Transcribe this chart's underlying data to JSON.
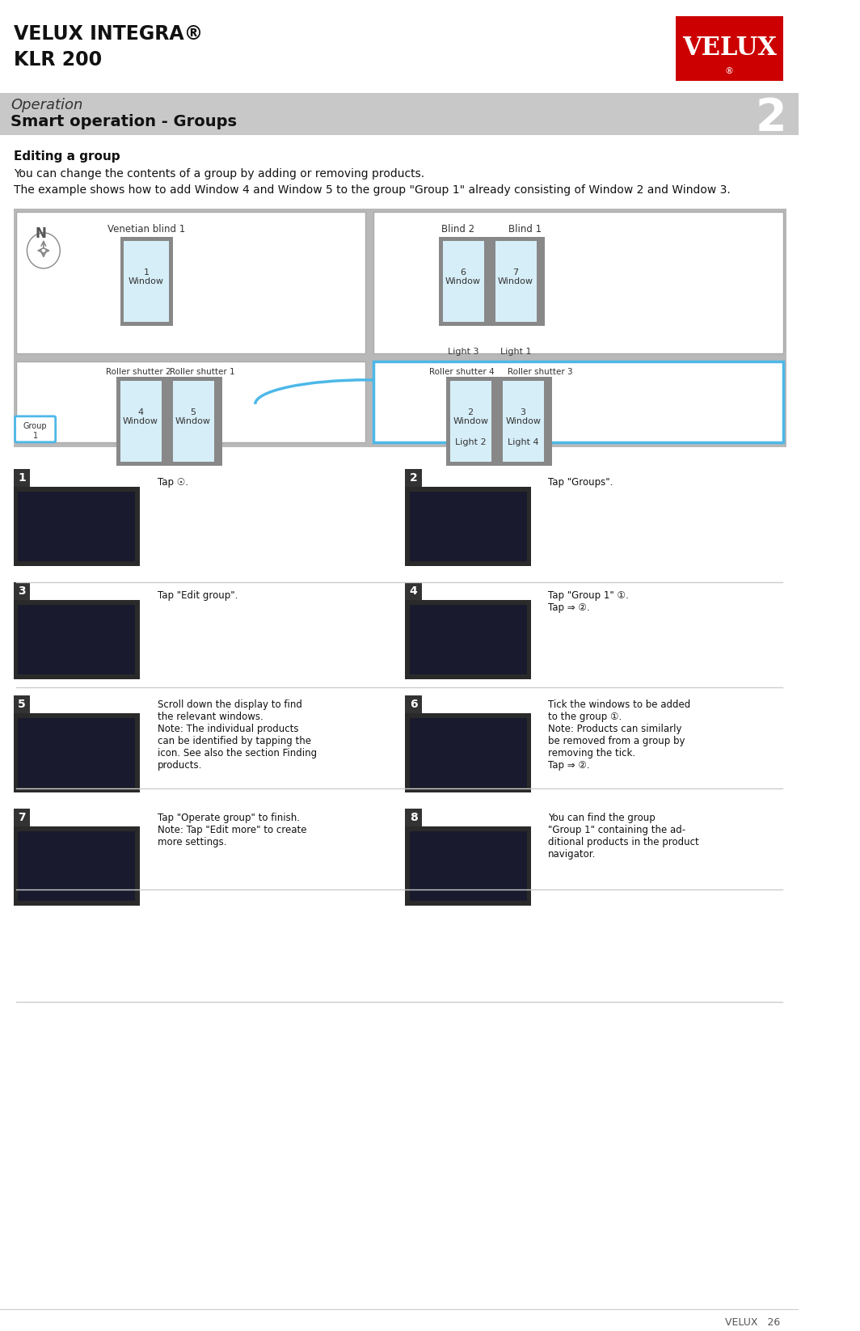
{
  "page_title_line1": "VELUX INTEGRA®",
  "page_title_line2": "KLR 200",
  "section_label": "Operation",
  "section_subtitle": "Smart operation - Groups",
  "section_number": "2",
  "section_bg": "#c8c8c8",
  "heading": "Editing a group",
  "para1": "You can change the contents of a group by adding or removing products.",
  "para2": "The example shows how to add Window 4 and Window 5 to the group \"Group 1\" already consisting of Window 2 and Window 3.",
  "velux_red": "#cc0000",
  "bg_white": "#ffffff",
  "bg_light_gray": "#d4d4d4",
  "window_fill": "#d6eef8",
  "window_border": "#707070",
  "blue_highlight": "#4db8e8",
  "step_bg": "#404040",
  "footer_text": "VELUX   26",
  "steps": [
    {
      "num": 1,
      "tap_text": "Tap ☉."
    },
    {
      "num": 2,
      "tap_text": "Tap \"Groups\"."
    },
    {
      "num": 3,
      "tap_text": "Tap \"Edit group\"."
    },
    {
      "num": 4,
      "tap_text": "Tap \"Group 1\" ①.\nTap ⇒ ②."
    },
    {
      "num": 5,
      "tap_text": "Scroll down the display to find\nthe relevant windows.\nNote: The individual products\ncan be identified by tapping the\nicon. See also the section Finding\nproducts."
    },
    {
      "num": 6,
      "tap_text": "Tick the windows to be added\nto the group ①.\nNote: Products can similarly\nbe removed from a group by\nremoving the tick.\nTap ⇒ ②."
    },
    {
      "num": 7,
      "tap_text": "Tap \"Operate group\" to finish.\nNote: Tap \"Edit more\" to create\nmore settings."
    },
    {
      "num": 8,
      "tap_text": "You can find the group\n\"Group 1\" containing the ad-\nditional products in the product\nnavigator."
    }
  ]
}
